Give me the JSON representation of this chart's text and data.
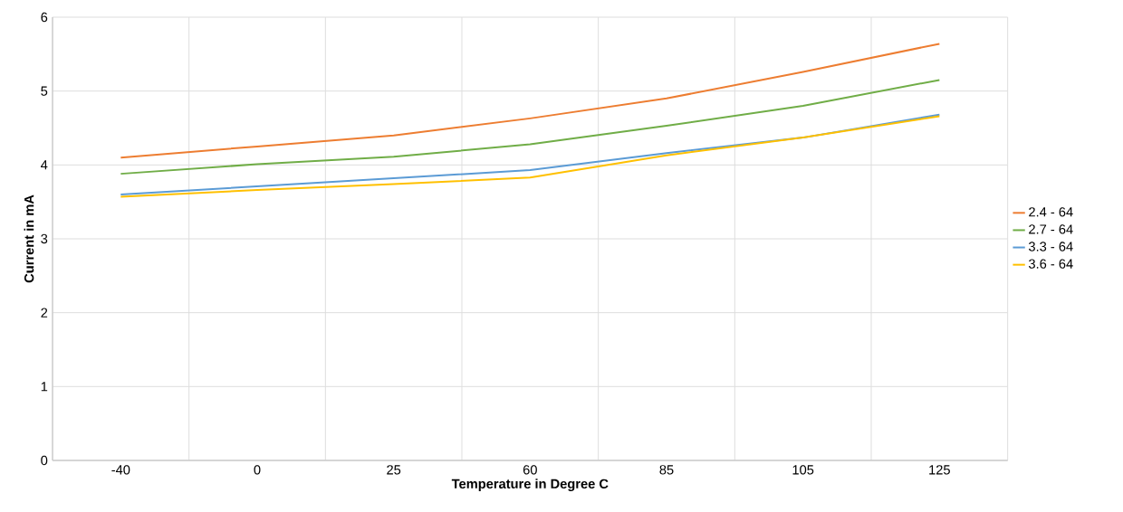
{
  "chart_data": {
    "type": "line",
    "xlabel": "Temperature in Degree C",
    "ylabel": "Current in mA",
    "categories": [
      "-40",
      "0",
      "25",
      "60",
      "85",
      "105",
      "125"
    ],
    "ylim": [
      0,
      6
    ],
    "yticks": [
      0,
      1,
      2,
      3,
      4,
      5,
      6
    ],
    "grid": true,
    "legend": "right",
    "marker": "none",
    "line_style": "solid",
    "series": [
      {
        "name": "2.4 - 64",
        "color": "#ed7d31",
        "values": [
          4.1,
          4.25,
          4.4,
          4.63,
          4.9,
          5.26,
          5.64
        ]
      },
      {
        "name": "2.7 - 64",
        "color": "#70ad47",
        "values": [
          3.88,
          4.01,
          4.11,
          4.28,
          4.53,
          4.8,
          5.15
        ]
      },
      {
        "name": "3.3 - 64",
        "color": "#5b9bd5",
        "values": [
          3.6,
          3.71,
          3.82,
          3.93,
          4.16,
          4.37,
          4.68
        ]
      },
      {
        "name": "3.6 - 64",
        "color": "#ffc000",
        "values": [
          3.57,
          3.66,
          3.74,
          3.83,
          4.13,
          4.37,
          4.66
        ]
      }
    ]
  }
}
